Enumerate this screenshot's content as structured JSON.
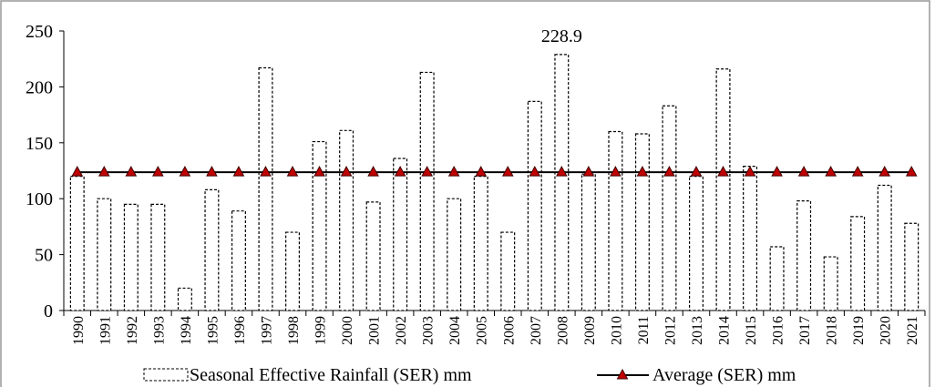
{
  "chart_data": {
    "type": "bar",
    "categories": [
      "1990",
      "1991",
      "1992",
      "1993",
      "1994",
      "1995",
      "1996",
      "1997",
      "1998",
      "1999",
      "2000",
      "2001",
      "2002",
      "2003",
      "2004",
      "2005",
      "2006",
      "2007",
      "2008",
      "2009",
      "2010",
      "2011",
      "2012",
      "2013",
      "2014",
      "2015",
      "2016",
      "2017",
      "2018",
      "2019",
      "2020",
      "2021"
    ],
    "series": [
      {
        "name": "Seasonal Effective Rainfall (SER) mm",
        "type": "bar",
        "color": "#000000",
        "values": [
          120,
          100,
          95,
          95,
          20,
          108,
          89,
          217,
          70,
          151,
          161,
          97,
          136,
          213,
          100,
          120,
          70,
          187,
          228.9,
          122,
          160,
          158,
          183,
          120,
          216,
          129,
          57,
          98,
          48,
          84,
          112,
          78
        ]
      },
      {
        "name": "Average (SER) mm",
        "type": "line",
        "color": "#000000",
        "marker_color": "#c00000",
        "values": [
          123.7,
          123.7,
          123.7,
          123.7,
          123.7,
          123.7,
          123.7,
          123.7,
          123.7,
          123.7,
          123.7,
          123.7,
          123.7,
          123.7,
          123.7,
          123.7,
          123.7,
          123.7,
          123.7,
          123.7,
          123.7,
          123.7,
          123.7,
          123.7,
          123.7,
          123.7,
          123.7,
          123.7,
          123.7,
          123.7,
          123.7,
          123.7
        ]
      }
    ],
    "ylim": [
      0,
      250
    ],
    "yticks": [
      0,
      50,
      100,
      150,
      200,
      250
    ],
    "grid": false,
    "legend": "bottom"
  }
}
